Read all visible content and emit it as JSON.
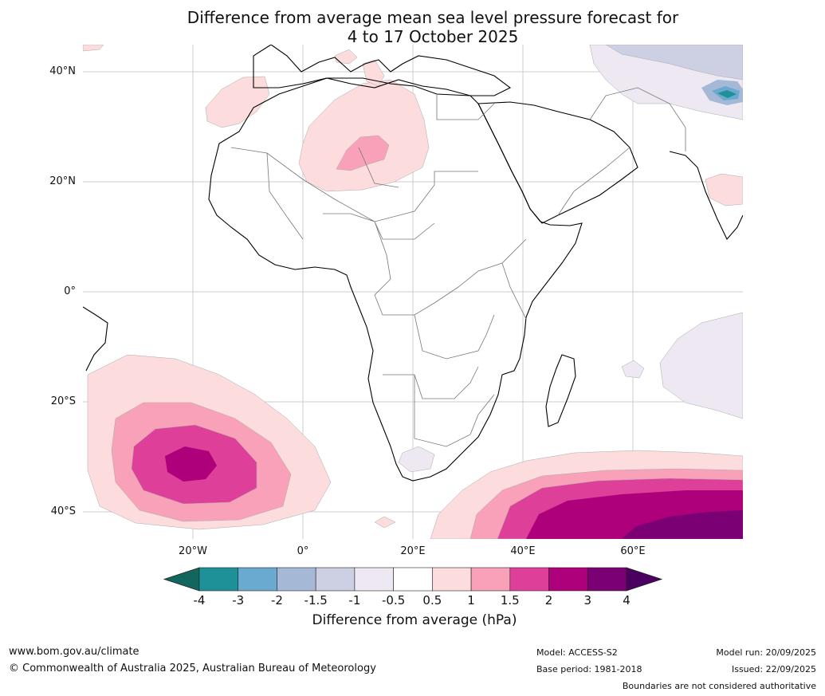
{
  "title": {
    "line1": "Difference from average mean sea level pressure forecast for",
    "line2": "4 to 17 October 2025"
  },
  "map": {
    "lat_labels": [
      "40°N",
      "20°N",
      "0°",
      "20°S",
      "40°S"
    ],
    "lon_labels": [
      "20°W",
      "0°",
      "20°E",
      "40°E",
      "60°E"
    ],
    "extent": {
      "lon_min": -40,
      "lon_max": 80,
      "lat_min": -45,
      "lat_max": 45
    }
  },
  "colorbar": {
    "ticks": [
      "-4",
      "-3",
      "-2",
      "-1.5",
      "-1",
      "-0.5",
      "0.5",
      "1",
      "1.5",
      "2",
      "3",
      "4"
    ],
    "colors": [
      "#11665e",
      "#1e9098",
      "#6aa9d0",
      "#a5b8d6",
      "#cdcfe3",
      "#ede8f2",
      "#ffffff",
      "#fcdcdc",
      "#f8a1b8",
      "#dd3f99",
      "#ae007b",
      "#7a0074",
      "#4b0061"
    ],
    "label": "Difference from average (hPa)"
  },
  "footer": {
    "website": "www.bom.gov.au/climate",
    "copyright": "© Commonwealth of Australia 2025, Australian Bureau of Meteorology",
    "model": "Model: ACCESS-S2",
    "base_period": "Base period: 1981-2018",
    "model_run": "Model run: 20/09/2025",
    "issued": "Issued: 22/09/2025",
    "disclaimer": "Boundaries are not considered authoritative"
  }
}
